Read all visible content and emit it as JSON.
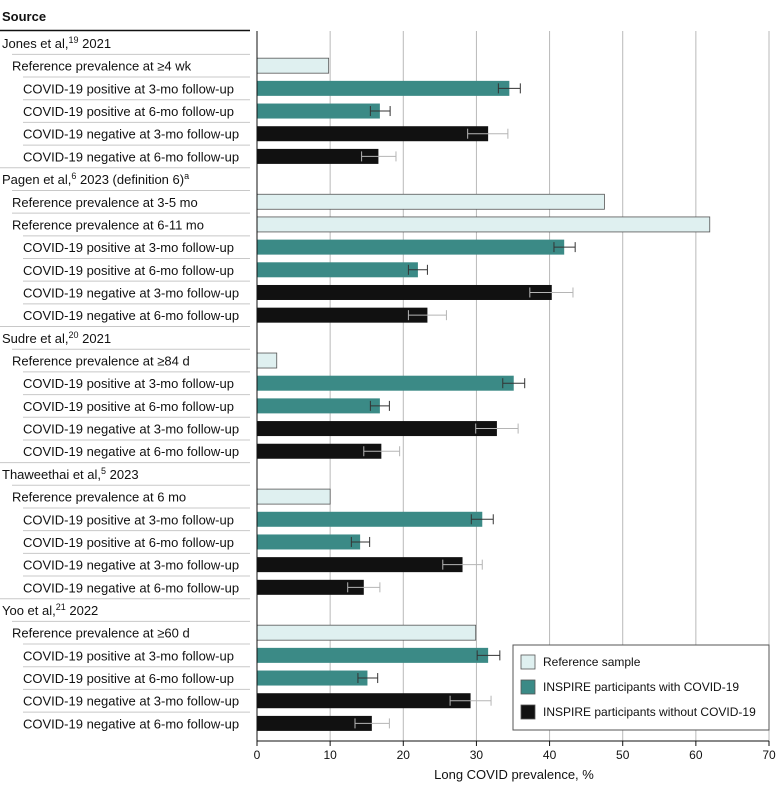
{
  "chart_data": {
    "type": "bar",
    "orientation": "horizontal",
    "header": "Source",
    "xlabel": "Long COVID prevalence, %",
    "xlim": [
      0,
      70
    ],
    "xticks": [
      0,
      10,
      20,
      30,
      40,
      50,
      60,
      70
    ],
    "grid": true,
    "legend_position": "bottom-right",
    "legend": [
      {
        "key": "ref",
        "label": "Reference sample",
        "color": "#dff0f0"
      },
      {
        "key": "pos",
        "label": "INSPIRE participants with COVID-19",
        "color": "#3b8a86"
      },
      {
        "key": "neg",
        "label": "INSPIRE participants without COVID-19",
        "color": "#111111"
      }
    ],
    "groups": [
      {
        "source": {
          "prefix": "Jones et al,",
          "sup": "19",
          "suffix": " 2021"
        },
        "rows": [
          {
            "label": "Reference prevalence at ≥4 wk",
            "kind": "ref",
            "value": 9.8
          },
          {
            "label": "COVID-19 positive at 3-mo follow-up",
            "kind": "pos",
            "value": 34.5,
            "ci": [
              33.0,
              36.0
            ]
          },
          {
            "label": "COVID-19 positive at 6-mo follow-up",
            "kind": "pos",
            "value": 16.8,
            "ci": [
              15.5,
              18.2
            ]
          },
          {
            "label": "COVID-19 negative at 3-mo follow-up",
            "kind": "neg",
            "value": 31.6,
            "ci": [
              28.8,
              34.3
            ]
          },
          {
            "label": "COVID-19 negative at 6-mo follow-up",
            "kind": "neg",
            "value": 16.6,
            "ci": [
              14.3,
              19.0
            ]
          }
        ]
      },
      {
        "source": {
          "prefix": "Pagen et al,",
          "sup": "6",
          "suffix": " 2023 (definition 6)",
          "sup2": "a"
        },
        "rows": [
          {
            "label": "Reference prevalence at 3-5 mo",
            "kind": "ref",
            "value": 47.5
          },
          {
            "label": "Reference prevalence at 6-11 mo",
            "kind": "ref",
            "value": 61.9
          },
          {
            "label": "COVID-19 positive at 3-mo follow-up",
            "kind": "pos",
            "value": 42.0,
            "ci": [
              40.6,
              43.5
            ]
          },
          {
            "label": "COVID-19 positive at 6-mo follow-up",
            "kind": "pos",
            "value": 22.0,
            "ci": [
              20.7,
              23.3
            ]
          },
          {
            "label": "COVID-19 negative at 3-mo follow-up",
            "kind": "neg",
            "value": 40.3,
            "ci": [
              37.3,
              43.2
            ]
          },
          {
            "label": "COVID-19 negative at 6-mo follow-up",
            "kind": "neg",
            "value": 23.3,
            "ci": [
              20.7,
              25.9
            ]
          }
        ]
      },
      {
        "source": {
          "prefix": "Sudre et al,",
          "sup": "20",
          "suffix": " 2021"
        },
        "rows": [
          {
            "label": "Reference prevalence at ≥84 d",
            "kind": "ref",
            "value": 2.7
          },
          {
            "label": "COVID-19 positive at 3-mo follow-up",
            "kind": "pos",
            "value": 35.1,
            "ci": [
              33.6,
              36.6
            ]
          },
          {
            "label": "COVID-19 positive at 6-mo follow-up",
            "kind": "pos",
            "value": 16.8,
            "ci": [
              15.5,
              18.1
            ]
          },
          {
            "label": "COVID-19 negative at 3-mo follow-up",
            "kind": "neg",
            "value": 32.8,
            "ci": [
              29.9,
              35.7
            ]
          },
          {
            "label": "COVID-19 negative at 6-mo follow-up",
            "kind": "neg",
            "value": 17.0,
            "ci": [
              14.6,
              19.5
            ]
          }
        ]
      },
      {
        "source": {
          "prefix": "Thaweethai et al,",
          "sup": "5",
          "suffix": " 2023"
        },
        "rows": [
          {
            "label": "Reference prevalence at 6 mo",
            "kind": "ref",
            "value": 10.0
          },
          {
            "label": "COVID-19 positive at 3-mo follow-up",
            "kind": "pos",
            "value": 30.8,
            "ci": [
              29.3,
              32.3
            ]
          },
          {
            "label": "COVID-19 positive at 6-mo follow-up",
            "kind": "pos",
            "value": 14.1,
            "ci": [
              12.9,
              15.4
            ]
          },
          {
            "label": "COVID-19 negative at 3-mo follow-up",
            "kind": "neg",
            "value": 28.1,
            "ci": [
              25.4,
              30.8
            ]
          },
          {
            "label": "COVID-19 negative at 6-mo follow-up",
            "kind": "neg",
            "value": 14.6,
            "ci": [
              12.4,
              16.8
            ]
          }
        ]
      },
      {
        "source": {
          "prefix": "Yoo et al,",
          "sup": "21",
          "suffix": " 2022"
        },
        "rows": [
          {
            "label": "Reference prevalence at ≥60 d",
            "kind": "ref",
            "value": 29.9
          },
          {
            "label": "COVID-19 positive at 3-mo follow-up",
            "kind": "pos",
            "value": 31.6,
            "ci": [
              30.1,
              33.2
            ]
          },
          {
            "label": "COVID-19 positive at 6-mo follow-up",
            "kind": "pos",
            "value": 15.1,
            "ci": [
              13.8,
              16.5
            ]
          },
          {
            "label": "COVID-19 negative at 3-mo follow-up",
            "kind": "neg",
            "value": 29.2,
            "ci": [
              26.4,
              32.0
            ]
          },
          {
            "label": "COVID-19 negative at 6-mo follow-up",
            "kind": "neg",
            "value": 15.7,
            "ci": [
              13.4,
              18.1
            ]
          }
        ]
      }
    ]
  }
}
